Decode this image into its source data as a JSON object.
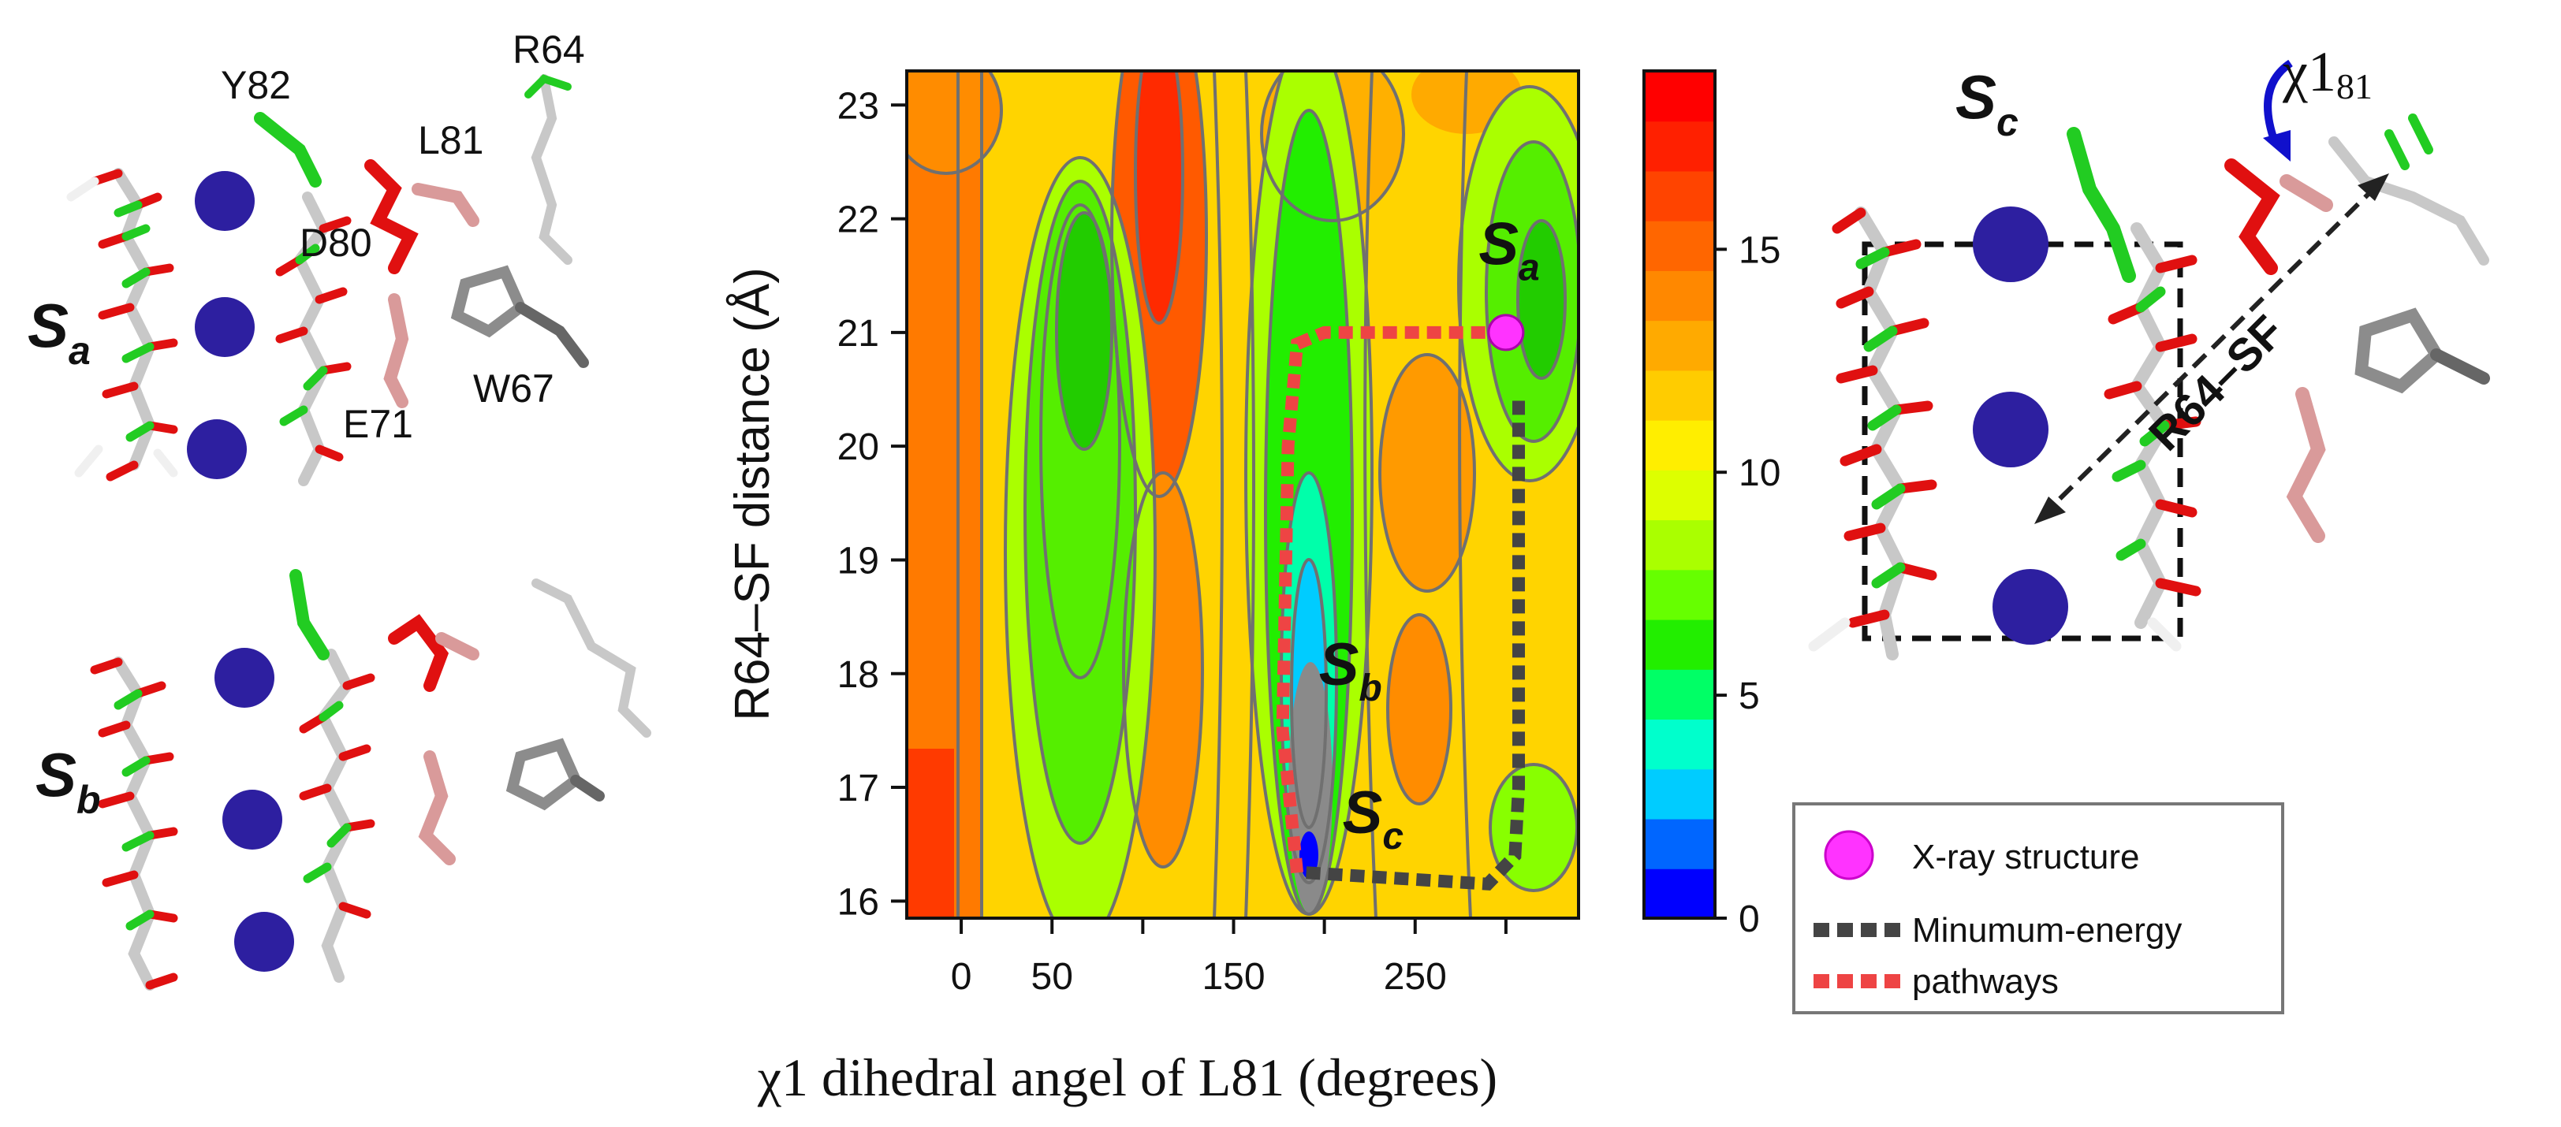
{
  "colors": {
    "contour_line": "#707070",
    "potassium": "#2d1fa0",
    "residue_red": "#e01010",
    "residue_green": "#22cc22",
    "residue_gray": "#8c8c8c",
    "residue_white": "#f0f0f0",
    "residue_pink": "#d99a9a",
    "xray_marker": "#ff33ff",
    "min_path": "#444444",
    "alt_path": "#ee4444"
  },
  "left_panels": {
    "sa": {
      "state_main": "S",
      "state_sub": "a",
      "residues": [
        "Y82",
        "R64",
        "L81",
        "D80",
        "W67",
        "E71"
      ]
    },
    "sb": {
      "state_main": "S",
      "state_sub": "b"
    }
  },
  "right_panel": {
    "state_main": "S",
    "state_sub": "c",
    "chi_greek": "χ",
    "chi_num": "1",
    "chi_sub": "81",
    "arrow_label": "R64–SF"
  },
  "legend": {
    "xray": "X-ray structure",
    "path_line1": "Minumum-energy",
    "path_line2": "pathways"
  },
  "chart_data": {
    "type": "heatmap",
    "title": "",
    "xlabel_greek": "χ",
    "xlabel_rest": "1 dihedral angel of L81 (degrees)",
    "ylabel": "R64–SF distance (Å)",
    "xlim": [
      -30,
      340
    ],
    "ylim": [
      15.85,
      23.3
    ],
    "x_ticks": [
      0,
      50,
      150,
      250
    ],
    "y_ticks": [
      16,
      17,
      18,
      19,
      20,
      21,
      22,
      23
    ],
    "colorbar": {
      "range": [
        0,
        19
      ],
      "ticks": [
        0,
        5,
        10,
        15
      ],
      "colors": [
        "#0000ff",
        "#0066ff",
        "#00ccff",
        "#00ffcc",
        "#00ff66",
        "#22ee00",
        "#66ff00",
        "#aaff00",
        "#ddff00",
        "#ffee00",
        "#ffcc00",
        "#ffaa00",
        "#ff8800",
        "#ff6600",
        "#ff4400",
        "#ff2000",
        "#ff0000"
      ]
    },
    "state_labels": [
      {
        "main": "S",
        "sub": "a",
        "x": 285,
        "y": 21.6
      },
      {
        "main": "S",
        "sub": "b",
        "x": 197,
        "y": 17.9
      },
      {
        "main": "S",
        "sub": "c",
        "x": 210,
        "y": 16.6
      }
    ],
    "xray_point": {
      "x": 300,
      "y": 21.0
    },
    "minimum_energy_pathway": [
      [
        190,
        16.25
      ],
      [
        290,
        16.15
      ],
      [
        305,
        16.4
      ],
      [
        307,
        17.0
      ],
      [
        307,
        20.4
      ]
    ],
    "red_pathway": [
      [
        185,
        16.25
      ],
      [
        177,
        17.5
      ],
      [
        180,
        20.0
      ],
      [
        185,
        20.9
      ],
      [
        200,
        21.0
      ],
      [
        290,
        21.0
      ]
    ]
  }
}
